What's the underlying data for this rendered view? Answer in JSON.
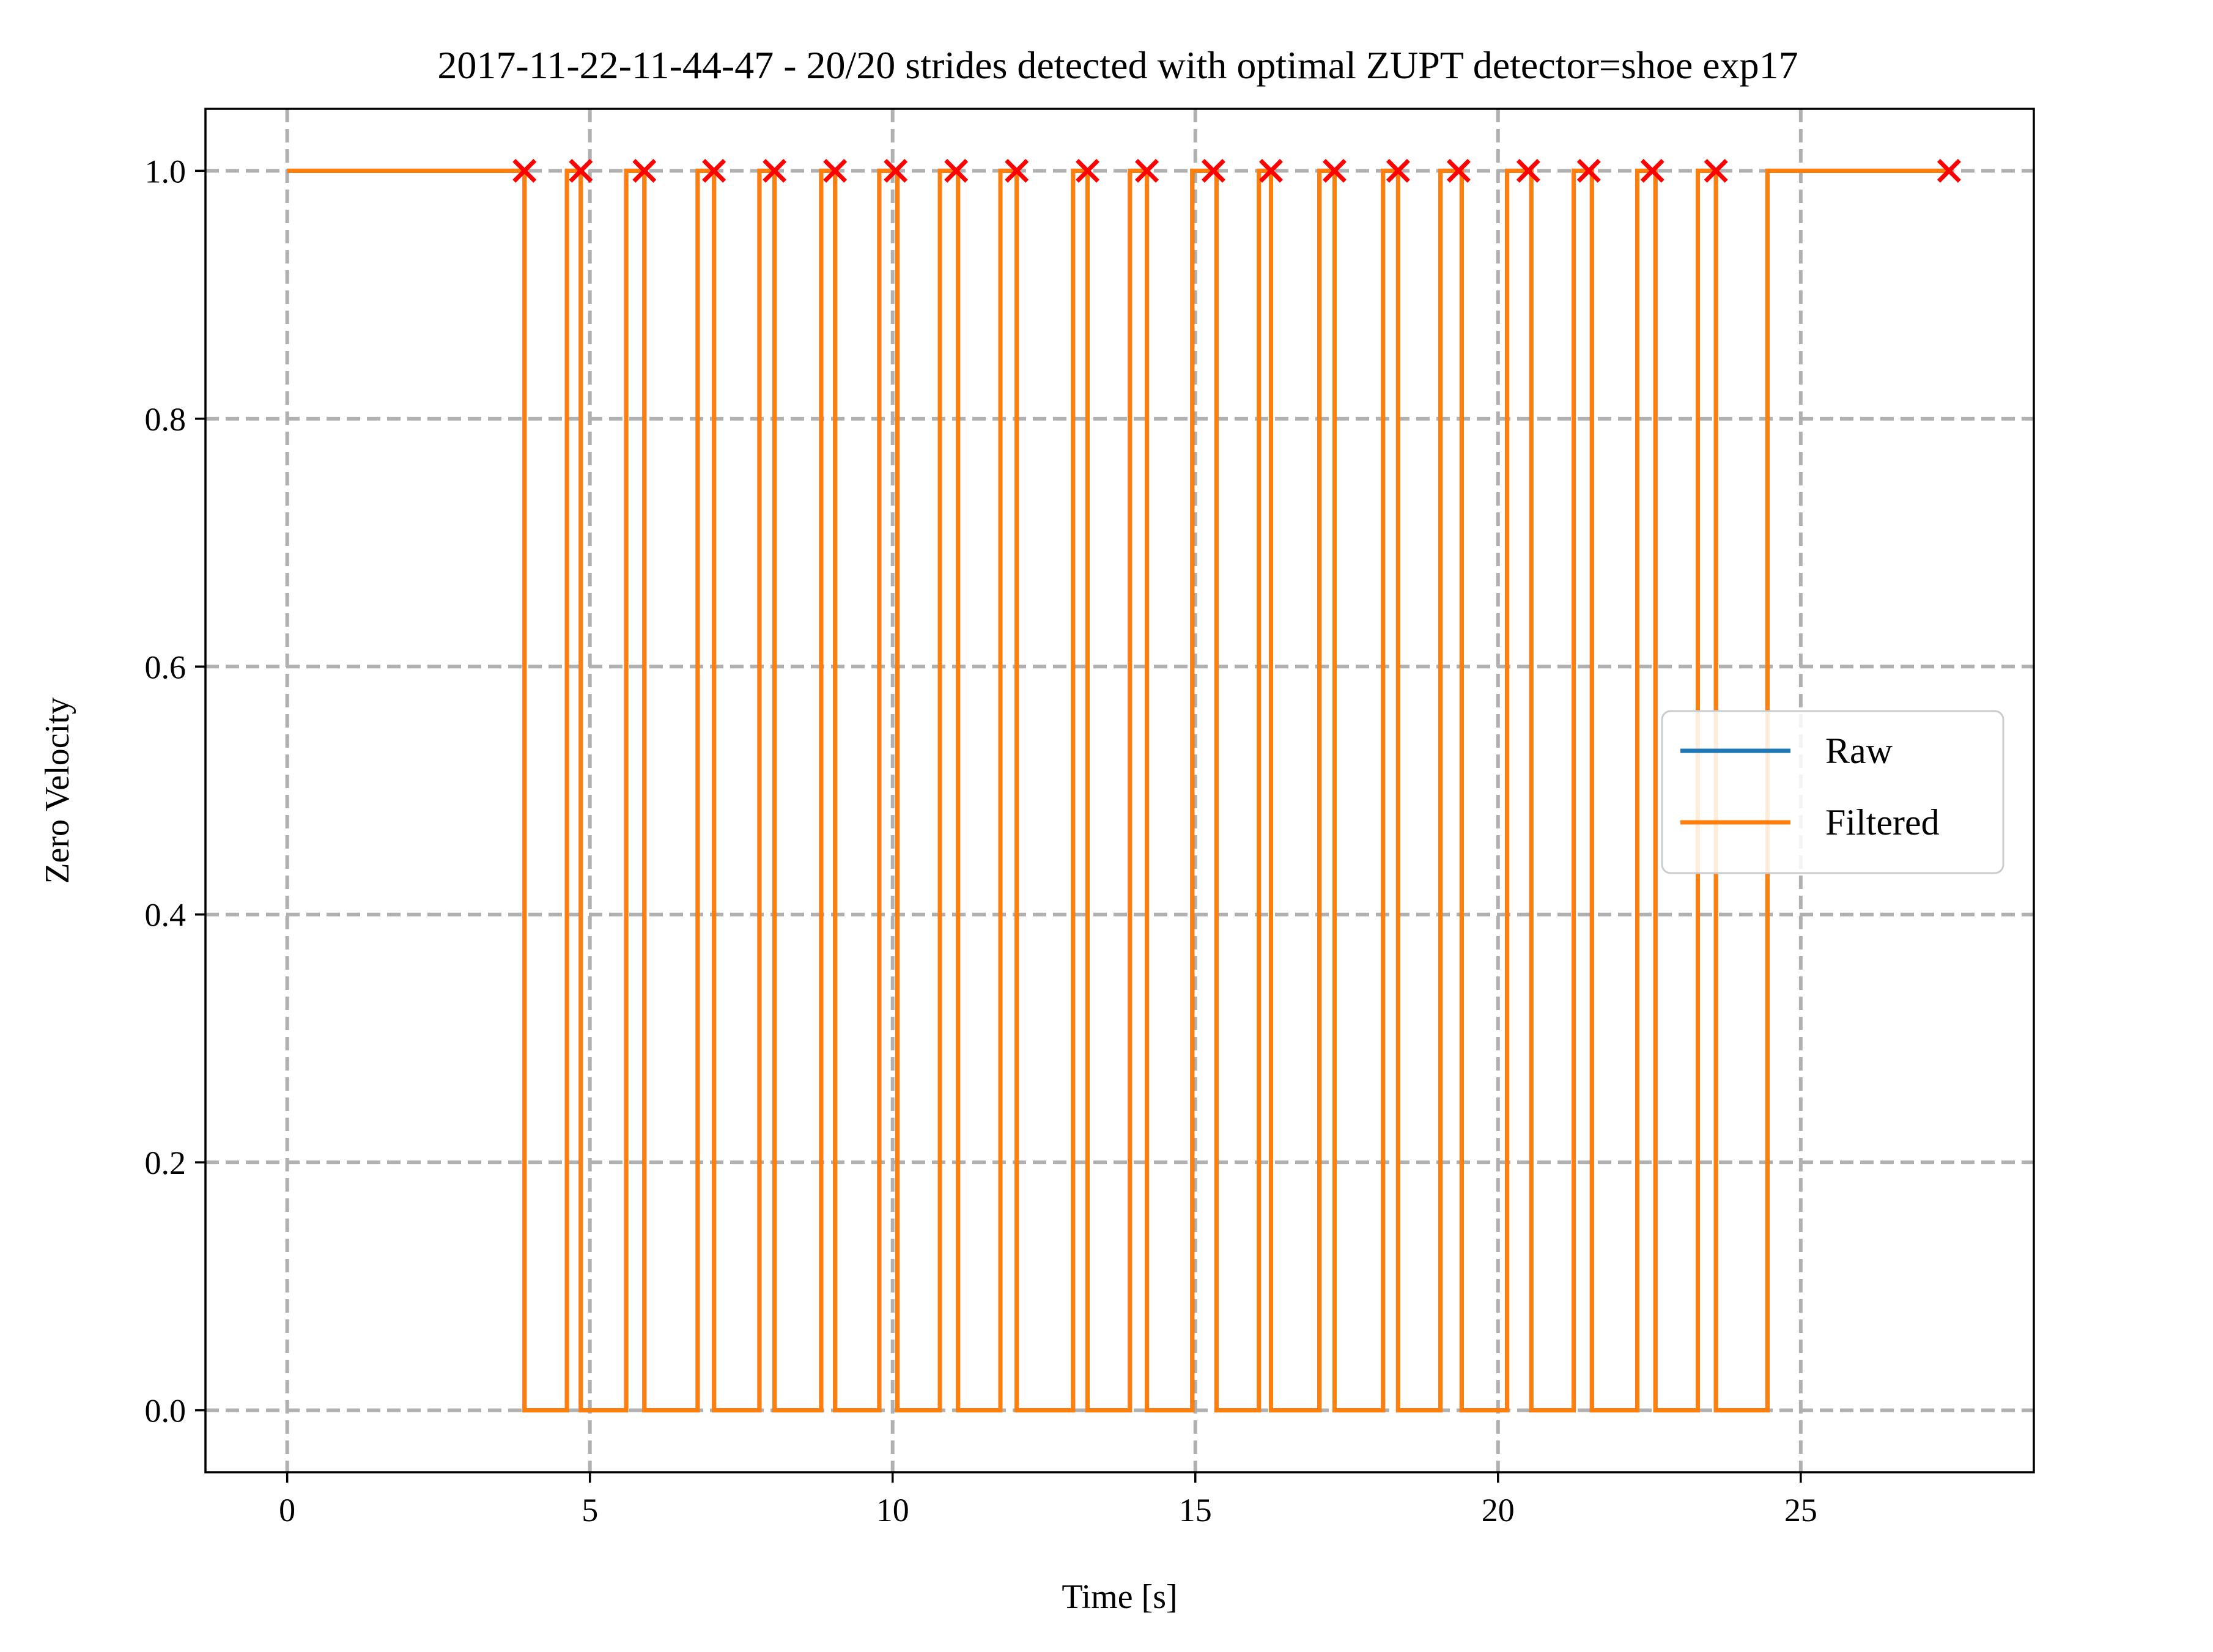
{
  "chart_data": {
    "type": "line",
    "title": "2017-11-22-11-44-47 - 20/20 strides detected with optimal ZUPT detector=shoe exp17",
    "xlabel": "Time [s]",
    "ylabel": "Zero Velocity",
    "xlim": [
      -1.35,
      28.85
    ],
    "ylim": [
      -0.05,
      1.05
    ],
    "x_ticks": [
      0,
      5,
      10,
      15,
      20,
      25
    ],
    "x_tick_labels": [
      "0",
      "5",
      "10",
      "15",
      "20",
      "25"
    ],
    "y_ticks": [
      0.0,
      0.2,
      0.4,
      0.6,
      0.8,
      1.0
    ],
    "y_tick_labels": [
      "0.0",
      "0.2",
      "0.4",
      "0.6",
      "0.8",
      "1.0"
    ],
    "grid": true,
    "legend": {
      "placement": "center-right"
    },
    "colors": {
      "raw": "#1f77b4",
      "filtered": "#ff7f0e",
      "markers": "#ff0000",
      "grid": "#b0b0b0"
    },
    "zero_velocity_intervals": [
      [
        0.0,
        3.92
      ],
      [
        4.62,
        4.85
      ],
      [
        5.6,
        5.9
      ],
      [
        6.78,
        7.05
      ],
      [
        7.8,
        8.05
      ],
      [
        8.82,
        9.05
      ],
      [
        9.78,
        10.08
      ],
      [
        10.78,
        11.08
      ],
      [
        11.78,
        12.05
      ],
      [
        12.98,
        13.22
      ],
      [
        13.92,
        14.2
      ],
      [
        14.95,
        15.35
      ],
      [
        16.05,
        16.25
      ],
      [
        17.05,
        17.3
      ],
      [
        18.1,
        18.35
      ],
      [
        19.05,
        19.4
      ],
      [
        20.15,
        20.55
      ],
      [
        21.25,
        21.55
      ],
      [
        22.3,
        22.6
      ],
      [
        23.3,
        23.6
      ],
      [
        24.45,
        27.45
      ]
    ],
    "series": [
      {
        "name": "Raw",
        "color": "#1f77b4",
        "style": "line"
      },
      {
        "name": "Filtered",
        "color": "#ff7f0e",
        "style": "line"
      }
    ],
    "stride_markers": {
      "marker": "x",
      "color": "#ff0000",
      "x": [
        3.92,
        4.85,
        5.9,
        7.05,
        8.05,
        9.05,
        10.05,
        11.05,
        12.05,
        13.22,
        14.2,
        15.3,
        16.25,
        17.3,
        18.35,
        19.35,
        20.5,
        21.5,
        22.55,
        23.6,
        27.45
      ],
      "y": 1.0
    }
  }
}
